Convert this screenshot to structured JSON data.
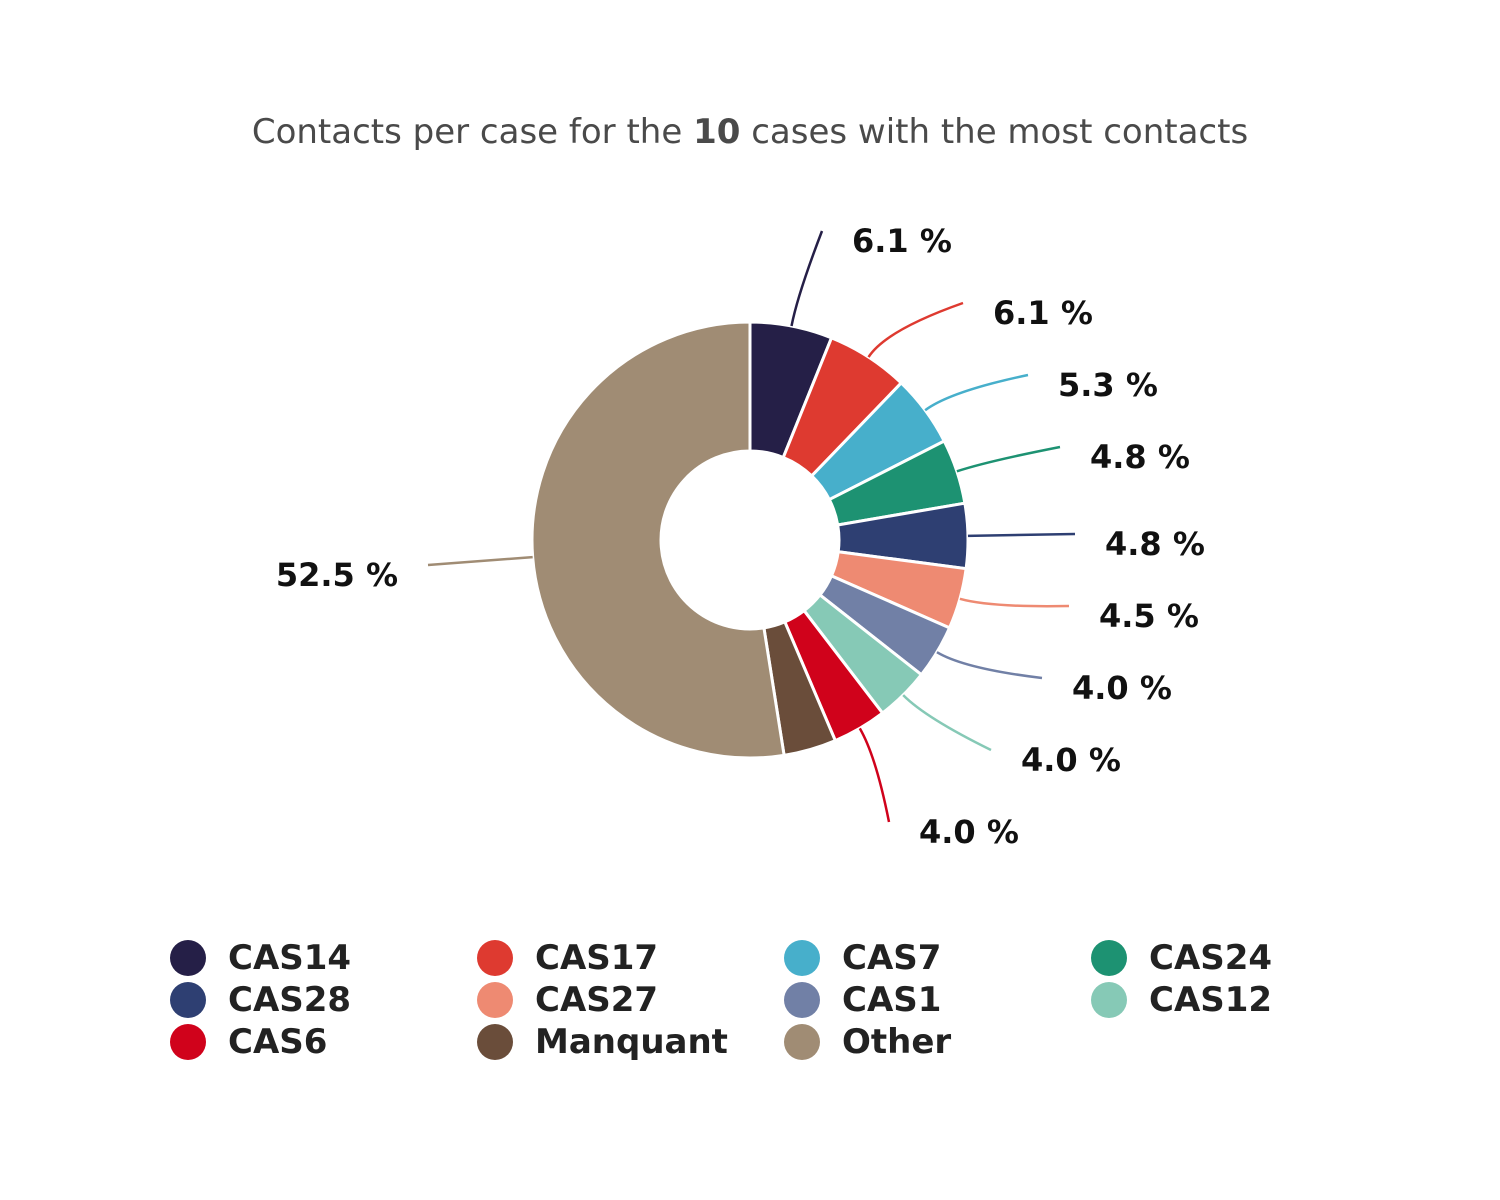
{
  "chart_data": {
    "type": "pie",
    "variant": "donut",
    "title_prefix": "Contacts per case for the",
    "title_count": "10",
    "title_suffix": "cases with the most contacts",
    "legend_position": "bottom",
    "slices": [
      {
        "name": "CAS14",
        "value": 6.1,
        "label": "6.1 %",
        "color": "#251f47"
      },
      {
        "name": "CAS17",
        "value": 6.1,
        "label": "6.1 %",
        "color": "#de3a30"
      },
      {
        "name": "CAS7",
        "value": 5.3,
        "label": "5.3 %",
        "color": "#47afcb"
      },
      {
        "name": "CAS24",
        "value": 4.8,
        "label": "4.8 %",
        "color": "#1d9272"
      },
      {
        "name": "CAS28",
        "value": 4.8,
        "label": "4.8 %",
        "color": "#2e3f72"
      },
      {
        "name": "CAS27",
        "value": 4.5,
        "label": "4.5 %",
        "color": "#ee8a72"
      },
      {
        "name": "CAS1",
        "value": 4.0,
        "label": "4.0 %",
        "color": "#7180a6"
      },
      {
        "name": "CAS12",
        "value": 4.0,
        "label": "4.0 %",
        "color": "#86c9b6"
      },
      {
        "name": "CAS6",
        "value": 4.0,
        "label": "4.0 %",
        "color": "#d0021b"
      },
      {
        "name": "Manquant",
        "value": 3.9,
        "label": "",
        "color": "#6a4d3a"
      },
      {
        "name": "Other",
        "value": 52.5,
        "label": "52.5 %",
        "color": "#a08c74"
      }
    ],
    "legend_order": [
      "CAS14",
      "CAS17",
      "CAS7",
      "CAS24",
      "CAS28",
      "CAS27",
      "CAS1",
      "CAS12",
      "CAS6",
      "Manquant",
      "Other"
    ]
  }
}
